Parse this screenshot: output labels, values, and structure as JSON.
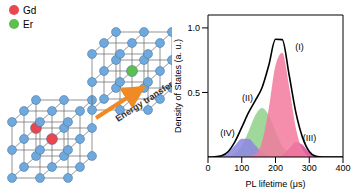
{
  "chart_data": {
    "type": "area",
    "x_label": "PL lifetime (μs)",
    "y_label": "Density of States (a. u.)",
    "x": [
      0,
      20,
      40,
      60,
      80,
      100,
      120,
      140,
      160,
      180,
      200,
      220,
      240,
      260,
      280,
      300,
      320,
      340,
      360,
      380,
      400
    ],
    "xlim": [
      0,
      400
    ],
    "xticks": [
      0,
      100,
      200,
      300,
      400
    ],
    "ylim": [
      0,
      1.1
    ],
    "yticks": [
      0.5,
      {
        "value": 1,
        "label": "1.0"
      }
    ],
    "series": [
      {
        "name": "(II)",
        "type": "area",
        "color": "#8fd18a",
        "values": [
          0,
          0,
          0,
          0.006,
          0.028,
          0.087,
          0.198,
          0.323,
          0.38,
          0.323,
          0.198,
          0.087,
          0.028,
          0.006,
          0.001,
          0,
          0,
          0,
          0,
          0,
          0
        ]
      },
      {
        "name": "(IV)",
        "type": "area",
        "color": "#8c86e0",
        "values": [
          0,
          0.002,
          0.01,
          0.037,
          0.091,
          0.142,
          0.142,
          0.091,
          0.037,
          0.01,
          0.002,
          0,
          0,
          0,
          0,
          0,
          0,
          0,
          0,
          0,
          0
        ]
      },
      {
        "name": "(III)",
        "type": "area",
        "color": "#d9449a",
        "values": [
          0,
          0,
          0,
          0,
          0,
          0,
          0,
          0,
          0,
          0,
          0.002,
          0.015,
          0.063,
          0.117,
          0.095,
          0.034,
          0.005,
          0,
          0,
          0,
          0
        ]
      },
      {
        "name": "(I)",
        "type": "area",
        "color": "#f27a9e",
        "values": [
          0,
          0,
          0,
          0,
          0,
          0,
          0.003,
          0.023,
          0.119,
          0.376,
          0.71,
          0.807,
          0.55,
          0.226,
          0.056,
          0.008,
          0,
          0,
          0,
          0,
          0
        ]
      },
      {
        "type": "line",
        "color": "#000000",
        "values": [
          0,
          0.002,
          0.01,
          0.043,
          0.119,
          0.229,
          0.343,
          0.437,
          0.536,
          0.709,
          0.912,
          0.909,
          0.641,
          0.349,
          0.152,
          0.042,
          0.005,
          0,
          0,
          0,
          0
        ]
      }
    ]
  },
  "diagram": {
    "legend": [
      {
        "label": "Gd",
        "color": "#e8474f"
      },
      {
        "label": "Er",
        "color": "#5cbf4e"
      }
    ],
    "arrow_label": "Energy transfer"
  }
}
